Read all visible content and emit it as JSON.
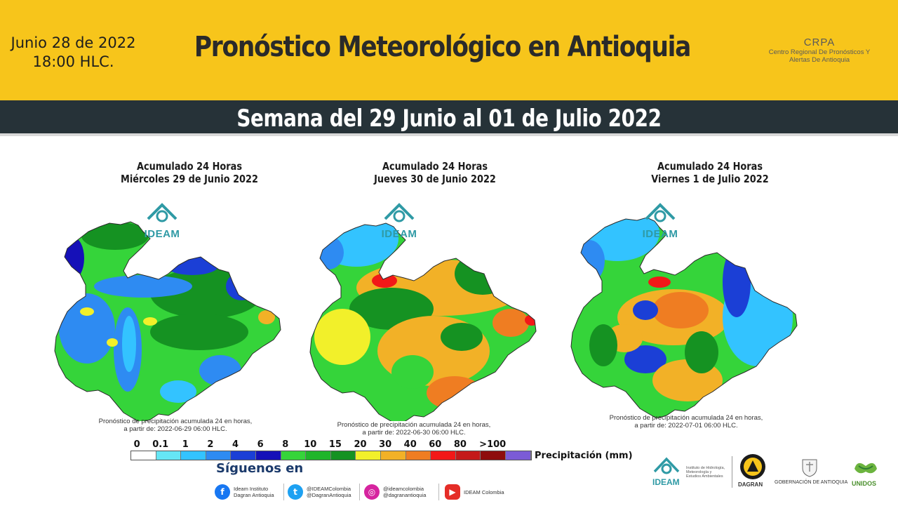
{
  "header": {
    "date_line1": "Junio 28 de 2022",
    "date_line2": "18:00 HLC.",
    "title": "Pronóstico Meteorológico en Antioquia",
    "crpa_abbr": "CRPA",
    "crpa_name_line1": "Centro Regional De Pronósticos Y",
    "crpa_name_line2": "Alertas De Antioquia"
  },
  "week_banner": "Semana del 29 Junio al 01 de Julio 2022",
  "panels": [
    {
      "title_line1": "Acumulado 24 Horas",
      "title_line2": "Miércoles 29 de Junio 2022",
      "ideam_label": "IDEAM",
      "note_line1": "Pronóstico de precipitación acumulada 24 en horas,",
      "note_line2": "a partir de: 2022-06-29 06:00 HLC."
    },
    {
      "title_line1": "Acumulado 24 Horas",
      "title_line2": "Jueves 30 de Junio 2022",
      "ideam_label": "IDEAM",
      "note_line1": "Pronóstico de precipitación acumulada 24 en horas,",
      "note_line2": "a partir de: 2022-06-30 06:00 HLC."
    },
    {
      "title_line1": "Acumulado 24 Horas",
      "title_line2": "Viernes 1 de Julio 2022",
      "ideam_label": "IDEAM",
      "note_line1": "Pronóstico de precipitación acumulada 24 en horas,",
      "note_line2": "a partir de: 2022-07-01 06:00 HLC."
    }
  ],
  "scale": {
    "labels": [
      "0",
      "0.1",
      "1",
      "2",
      "4",
      "6",
      "8",
      "10",
      "15",
      "20",
      "30",
      "40",
      "60",
      "80",
      ">100"
    ],
    "unit_label": "Precipitación  (mm)",
    "colors": [
      "#ffffff",
      "#66e6f5",
      "#33c3ff",
      "#2e8bf2",
      "#1b3fd6",
      "#1510b8",
      "#35d43a",
      "#1fb52a",
      "#159222",
      "#f2f02a",
      "#f2b127",
      "#ef7d22",
      "#f21818",
      "#c41a1a",
      "#8e0d0d",
      "#7b5bd6"
    ]
  },
  "footer": {
    "follow_label": "Síguenos en",
    "social": [
      {
        "icon": "facebook-icon",
        "line1": "Ideam Instituto",
        "line2": "Dagran Antioquia",
        "color": "#1877f2"
      },
      {
        "icon": "twitter-icon",
        "line1": "@IDEAMColombia",
        "line2": "@DagranAntioquia",
        "color": "#1da1f2"
      },
      {
        "icon": "instagram-icon",
        "line1": "@ideamcolombia",
        "line2": "@dagranantioquia",
        "color": "#d6249f"
      },
      {
        "icon": "youtube-icon",
        "line1": "IDEAM Colombia",
        "line2": "",
        "color": "#e52d27"
      }
    ],
    "logos": {
      "ideam": "IDEAM",
      "ideam_sub_line1": "Instituto de Hidrología,",
      "ideam_sub_line2": "Meteorología y",
      "ideam_sub_line3": "Estudios Ambientales",
      "dagran": "DAGRAN",
      "gobernacion": "GOBERNACIÓN DE ANTIOQUIA",
      "unidos": "UNIDOS"
    }
  }
}
